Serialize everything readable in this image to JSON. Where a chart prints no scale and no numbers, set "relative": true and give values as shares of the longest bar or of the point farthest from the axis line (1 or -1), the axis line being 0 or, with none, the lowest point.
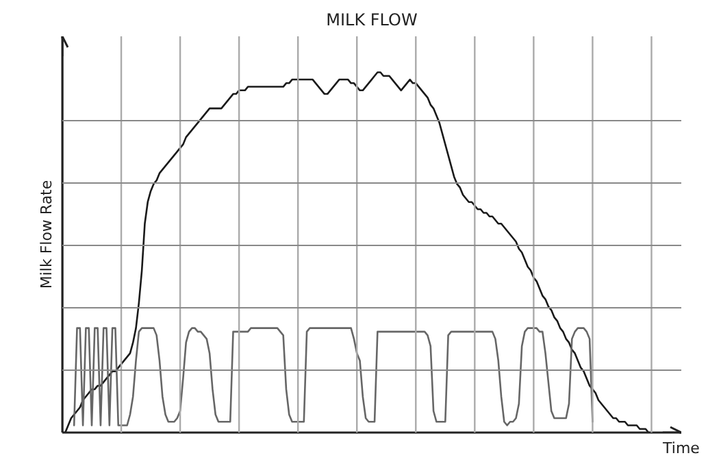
{
  "chart_data": {
    "type": "line",
    "title": "MILK FLOW",
    "xlabel": "Time",
    "ylabel": "Milk Flow Rate",
    "relative": true,
    "grid": true,
    "marker": "none",
    "line_style": "solid",
    "categories": [
      null,
      null,
      null,
      null,
      null,
      null,
      null,
      null,
      null,
      null,
      null,
      null,
      null,
      null,
      null,
      null,
      null,
      null,
      null,
      null,
      null,
      null,
      null,
      null,
      null,
      null,
      null,
      null,
      null,
      null,
      null,
      null,
      null,
      null,
      null,
      null,
      null,
      null,
      null,
      null,
      null,
      null,
      null,
      null,
      null,
      null,
      null,
      null,
      null,
      null,
      null,
      null,
      null,
      null,
      null,
      null,
      null,
      null,
      null,
      null,
      null,
      null,
      null,
      null,
      null,
      null,
      null,
      null,
      null,
      null,
      null,
      null,
      null,
      null,
      null,
      null,
      null,
      null,
      null,
      null,
      null,
      null,
      null,
      null,
      null,
      null,
      null,
      null,
      null,
      null,
      null,
      null,
      null,
      null,
      null,
      null,
      null,
      null,
      null,
      null,
      null,
      null,
      null,
      null,
      null,
      null,
      null,
      null,
      null,
      null,
      null,
      null,
      null,
      null,
      null,
      null,
      null,
      null,
      null,
      null,
      null,
      null,
      null,
      null,
      null,
      null,
      null,
      null,
      null,
      null,
      null,
      null,
      null,
      null,
      null,
      null,
      null,
      null,
      null,
      null,
      null,
      null,
      null,
      null,
      null,
      null,
      null,
      null,
      null,
      null,
      null,
      null,
      null,
      null,
      null,
      null,
      null,
      null,
      null,
      null,
      null,
      null,
      null,
      null,
      null,
      null,
      null,
      null,
      null,
      null,
      null,
      null,
      null,
      null,
      null,
      null,
      null,
      null,
      null,
      null,
      null,
      null,
      null,
      null,
      null,
      null,
      null,
      null,
      null,
      null,
      null,
      null,
      null,
      null,
      null,
      null,
      null,
      null,
      null,
      null,
      null,
      null,
      null,
      null,
      null
    ],
    "series": [
      {
        "color": "#1a1a1a",
        "values": [
          0,
          0,
          0.02,
          0.04,
          0.05,
          0.06,
          0.07,
          0.09,
          0.1,
          0.11,
          0.12,
          0.12,
          0.13,
          0.13,
          0.14,
          0.15,
          0.16,
          0.17,
          0.17,
          0.18,
          0.19,
          0.2,
          0.21,
          0.22,
          0.25,
          0.29,
          0.36,
          0.45,
          0.58,
          0.64,
          0.67,
          0.69,
          0.7,
          0.72,
          0.73,
          0.74,
          0.75,
          0.76,
          0.77,
          0.78,
          0.79,
          0.8,
          0.82,
          0.83,
          0.84,
          0.85,
          0.86,
          0.87,
          0.88,
          0.89,
          0.9,
          0.9,
          0.9,
          0.9,
          0.9,
          0.91,
          0.92,
          0.93,
          0.94,
          0.94,
          0.95,
          0.95,
          0.95,
          0.96,
          0.96,
          0.96,
          0.96,
          0.96,
          0.96,
          0.96,
          0.96,
          0.96,
          0.96,
          0.96,
          0.96,
          0.96,
          0.97,
          0.97,
          0.98,
          0.98,
          0.98,
          0.98,
          0.98,
          0.98,
          0.98,
          0.98,
          0.97,
          0.96,
          0.95,
          0.94,
          0.94,
          0.95,
          0.96,
          0.97,
          0.98,
          0.98,
          0.98,
          0.98,
          0.97,
          0.97,
          0.96,
          0.95,
          0.95,
          0.96,
          0.97,
          0.98,
          0.99,
          1.0,
          1.0,
          0.99,
          0.99,
          0.99,
          0.98,
          0.97,
          0.96,
          0.95,
          0.96,
          0.97,
          0.98,
          0.97,
          0.97,
          0.96,
          0.95,
          0.94,
          0.93,
          0.91,
          0.9,
          0.88,
          0.86,
          0.83,
          0.8,
          0.77,
          0.74,
          0.71,
          0.69,
          0.68,
          0.66,
          0.65,
          0.64,
          0.64,
          0.63,
          0.62,
          0.62,
          0.61,
          0.61,
          0.6,
          0.6,
          0.59,
          0.58,
          0.58,
          0.57,
          0.56,
          0.55,
          0.54,
          0.53,
          0.51,
          0.5,
          0.48,
          0.46,
          0.45,
          0.43,
          0.42,
          0.4,
          0.38,
          0.37,
          0.35,
          0.34,
          0.32,
          0.31,
          0.29,
          0.28,
          0.26,
          0.25,
          0.23,
          0.22,
          0.2,
          0.18,
          0.17,
          0.15,
          0.13,
          0.12,
          0.11,
          0.09,
          0.08,
          0.07,
          0.06,
          0.05,
          0.04,
          0.04,
          0.03,
          0.03,
          0.03,
          0.02,
          0.02,
          0.02,
          0.02,
          0.01,
          0.01,
          0.01,
          0,
          0,
          null,
          null,
          null,
          null
        ]
      },
      {
        "color": "#666666",
        "values": [
          null,
          null,
          null,
          null,
          0.02,
          0.29,
          0.29,
          0.02,
          0.29,
          0.29,
          0.02,
          0.29,
          0.29,
          0.02,
          0.29,
          0.29,
          0.02,
          0.29,
          0.29,
          0.02,
          0.02,
          0.02,
          0.02,
          0.05,
          0.1,
          0.2,
          0.28,
          0.29,
          0.29,
          0.29,
          0.29,
          0.29,
          0.27,
          0.2,
          0.1,
          0.05,
          0.03,
          0.03,
          0.03,
          0.04,
          0.06,
          0.15,
          0.25,
          0.28,
          0.29,
          0.29,
          0.28,
          0.28,
          0.27,
          0.26,
          0.22,
          0.12,
          0.05,
          0.03,
          0.03,
          0.03,
          0.03,
          0.03,
          0.28,
          0.28,
          0.28,
          0.28,
          0.28,
          0.28,
          0.29,
          0.29,
          0.29,
          0.29,
          0.29,
          0.29,
          0.29,
          0.29,
          0.29,
          0.29,
          0.28,
          0.27,
          0.12,
          0.05,
          0.03,
          0.03,
          0.03,
          0.03,
          0.03,
          0.28,
          0.29,
          0.29,
          0.29,
          0.29,
          0.29,
          0.29,
          0.29,
          0.29,
          0.29,
          0.29,
          0.29,
          0.29,
          0.29,
          0.29,
          0.29,
          0.26,
          0.22,
          0.2,
          0.1,
          0.04,
          0.03,
          0.03,
          0.03,
          0.28,
          0.28,
          0.28,
          0.28,
          0.28,
          0.28,
          0.28,
          0.28,
          0.28,
          0.28,
          0.28,
          0.28,
          0.28,
          0.28,
          0.28,
          0.28,
          0.28,
          0.27,
          0.24,
          0.06,
          0.03,
          0.03,
          0.03,
          0.03,
          0.27,
          0.28,
          0.28,
          0.28,
          0.28,
          0.28,
          0.28,
          0.28,
          0.28,
          0.28,
          0.28,
          0.28,
          0.28,
          0.28,
          0.28,
          0.28,
          0.26,
          0.2,
          0.1,
          0.03,
          0.02,
          0.03,
          0.03,
          0.04,
          0.08,
          0.24,
          0.28,
          0.29,
          0.29,
          0.29,
          0.29,
          0.28,
          0.28,
          0.22,
          0.14,
          0.06,
          0.04,
          0.04,
          0.04,
          0.04,
          0.04,
          0.08,
          0.26,
          0.28,
          0.29,
          0.29,
          0.29,
          0.28,
          0.26,
          0.03,
          null,
          null,
          null,
          null,
          null,
          null,
          null,
          null,
          null,
          null,
          null,
          null,
          null,
          null,
          null,
          null,
          null,
          null,
          null,
          null,
          null,
          null,
          null,
          null
        ]
      }
    ]
  }
}
